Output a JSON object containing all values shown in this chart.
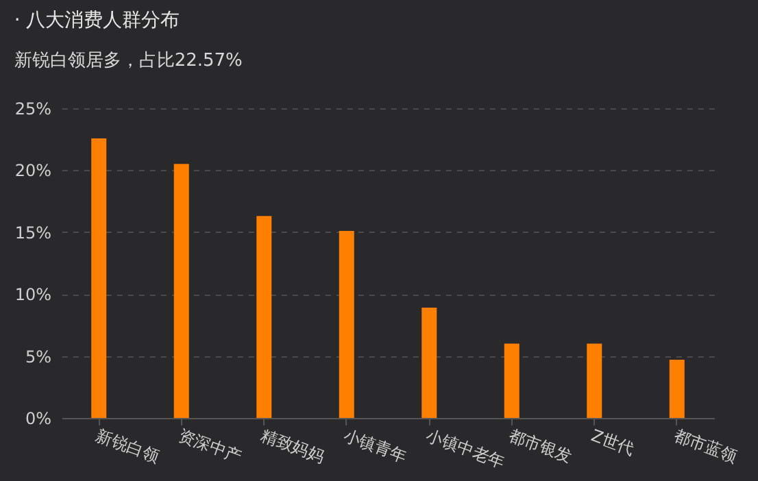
{
  "chart_data": {
    "type": "bar",
    "title": "· 八大消费人群分布",
    "subtitle": "新锐白领居多，占比22.57%",
    "categories": [
      "新锐白领",
      "资深中产",
      "精致妈妈",
      "小镇青年",
      "小镇中老年",
      "都市银发",
      "Z世代",
      "都市蓝领"
    ],
    "values": [
      22.57,
      20.5,
      16.3,
      15.1,
      8.9,
      6.0,
      6.0,
      4.7
    ],
    "color": "#ff7f00",
    "ylim": [
      0,
      25
    ],
    "yticks": [
      {
        "value": 0,
        "label": "0%"
      },
      {
        "value": 5,
        "label": "5%"
      },
      {
        "value": 10,
        "label": "10%"
      },
      {
        "value": 15,
        "label": "15%"
      },
      {
        "value": 20,
        "label": "20%"
      },
      {
        "value": 25,
        "label": "25%"
      }
    ],
    "grid": "y"
  }
}
